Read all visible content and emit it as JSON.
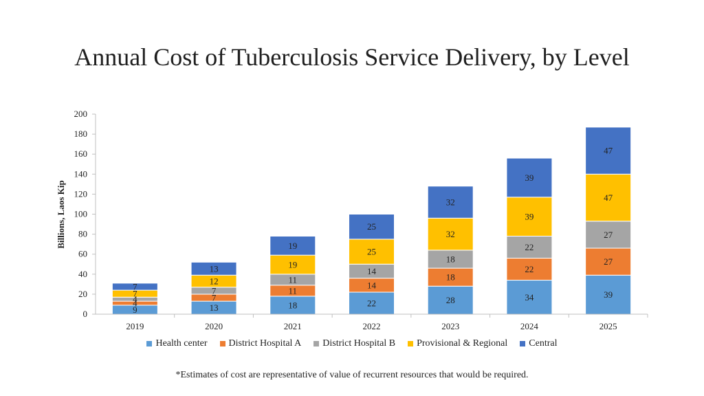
{
  "page": {
    "title": "Annual Cost of Tuberculosis Service Delivery, by Level",
    "footnote": "*Estimates of cost are representative of value of recurrent resources that would be required."
  },
  "chart_data": {
    "type": "bar",
    "stacked": true,
    "title": "Annual Cost of Tuberculosis Service Delivery, by Level",
    "xlabel": "",
    "ylabel": "Billions, Laos Kip",
    "ylim": [
      0,
      200
    ],
    "yticks": [
      0,
      20,
      40,
      60,
      80,
      100,
      120,
      140,
      160,
      180,
      200
    ],
    "categories": [
      "2019",
      "2020",
      "2021",
      "2022",
      "2023",
      "2024",
      "2025"
    ],
    "legend_position": "bottom",
    "series": [
      {
        "name": "Health center",
        "color": "#5B9BD5",
        "values": [
          9,
          13,
          18,
          22,
          28,
          34,
          39
        ]
      },
      {
        "name": "District Hospital A",
        "color": "#ED7D31",
        "values": [
          4,
          7,
          11,
          14,
          18,
          22,
          27
        ]
      },
      {
        "name": "District Hospital B",
        "color": "#A5A5A5",
        "values": [
          4,
          7,
          11,
          14,
          18,
          22,
          27
        ]
      },
      {
        "name": "Provisional & Regional",
        "color": "#FFC000",
        "values": [
          7,
          12,
          19,
          25,
          32,
          39,
          47
        ]
      },
      {
        "name": "Central",
        "color": "#4472C4",
        "values": [
          7,
          13,
          19,
          25,
          32,
          39,
          47
        ]
      }
    ]
  }
}
